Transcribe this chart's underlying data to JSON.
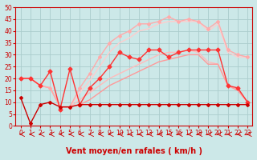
{
  "title": "",
  "xlabel": "Vent moyen/en rafales ( km/h )",
  "ylabel": "",
  "bg_color": "#cce8e8",
  "grid_color": "#aacccc",
  "xlim": [
    -0.5,
    23.5
  ],
  "ylim": [
    0,
    50
  ],
  "yticks": [
    0,
    5,
    10,
    15,
    20,
    25,
    30,
    35,
    40,
    45,
    50
  ],
  "xticks": [
    0,
    1,
    2,
    3,
    4,
    5,
    6,
    7,
    8,
    9,
    10,
    11,
    12,
    13,
    14,
    15,
    16,
    17,
    18,
    19,
    20,
    21,
    22,
    23
  ],
  "lines": [
    {
      "x": [
        0,
        1,
        2,
        3,
        4,
        5,
        6,
        7,
        8,
        9,
        10,
        11,
        12,
        13,
        14,
        15,
        16,
        17,
        18,
        19,
        20,
        21,
        22,
        23
      ],
      "y": [
        12,
        1,
        9,
        10,
        8,
        8,
        9,
        9,
        9,
        9,
        9,
        9,
        9,
        9,
        9,
        9,
        9,
        9,
        9,
        9,
        9,
        9,
        9,
        9
      ],
      "color": "#cc0000",
      "lw": 1.0,
      "marker": "D",
      "ms": 2.0,
      "zorder": 5
    },
    {
      "x": [
        0,
        1,
        2,
        3,
        4,
        5,
        6,
        7,
        8,
        9,
        10,
        11,
        12,
        13,
        14,
        15,
        16,
        17,
        18,
        19,
        20,
        21,
        22,
        23
      ],
      "y": [
        20,
        20,
        17,
        16,
        8,
        8,
        9,
        11,
        14,
        17,
        19,
        21,
        23,
        25,
        27,
        28,
        29,
        30,
        30,
        26,
        26,
        17,
        15,
        10
      ],
      "color": "#ff9999",
      "lw": 1.0,
      "marker": null,
      "ms": 0,
      "zorder": 3
    },
    {
      "x": [
        0,
        1,
        2,
        3,
        4,
        5,
        6,
        7,
        8,
        9,
        10,
        11,
        12,
        13,
        14,
        15,
        16,
        17,
        18,
        19,
        20,
        21,
        22,
        23
      ],
      "y": [
        20,
        20,
        17,
        16,
        8,
        8,
        11,
        14,
        17,
        20,
        22,
        24,
        26,
        28,
        30,
        31,
        31,
        32,
        31,
        27,
        26,
        17,
        15,
        10
      ],
      "color": "#ffbbbb",
      "lw": 1.0,
      "marker": null,
      "ms": 0,
      "zorder": 2
    },
    {
      "x": [
        0,
        1,
        2,
        3,
        4,
        5,
        6,
        7,
        8,
        9,
        10,
        11,
        12,
        13,
        14,
        15,
        16,
        17,
        18,
        19,
        20,
        21,
        22,
        23
      ],
      "y": [
        20,
        20,
        17,
        23,
        7,
        24,
        9,
        16,
        20,
        25,
        31,
        29,
        28,
        32,
        32,
        29,
        31,
        32,
        32,
        32,
        32,
        17,
        16,
        10
      ],
      "color": "#ff3333",
      "lw": 1.0,
      "marker": "D",
      "ms": 2.5,
      "zorder": 4
    },
    {
      "x": [
        0,
        1,
        2,
        3,
        4,
        5,
        6,
        7,
        8,
        9,
        10,
        11,
        12,
        13,
        14,
        15,
        16,
        17,
        18,
        19,
        20,
        21,
        22,
        23
      ],
      "y": [
        20,
        20,
        17,
        16,
        8,
        8,
        16,
        22,
        29,
        35,
        38,
        40,
        43,
        43,
        44,
        46,
        44,
        45,
        44,
        41,
        44,
        32,
        30,
        29
      ],
      "color": "#ffaaaa",
      "lw": 1.0,
      "marker": "D",
      "ms": 2.0,
      "zorder": 3
    },
    {
      "x": [
        0,
        1,
        2,
        3,
        4,
        5,
        6,
        7,
        8,
        9,
        10,
        11,
        12,
        13,
        14,
        15,
        16,
        17,
        18,
        19,
        20,
        21,
        22,
        23
      ],
      "y": [
        20,
        20,
        17,
        16,
        8,
        8,
        14,
        19,
        25,
        31,
        35,
        37,
        40,
        41,
        43,
        44,
        44,
        44,
        44,
        40,
        43,
        31,
        29,
        29
      ],
      "color": "#ffcccc",
      "lw": 1.0,
      "marker": null,
      "ms": 0,
      "zorder": 2
    }
  ],
  "arrow_color": "#cc0000",
  "font_color": "#cc0000",
  "axis_label_fontsize": 7,
  "tick_fontsize": 5.5
}
